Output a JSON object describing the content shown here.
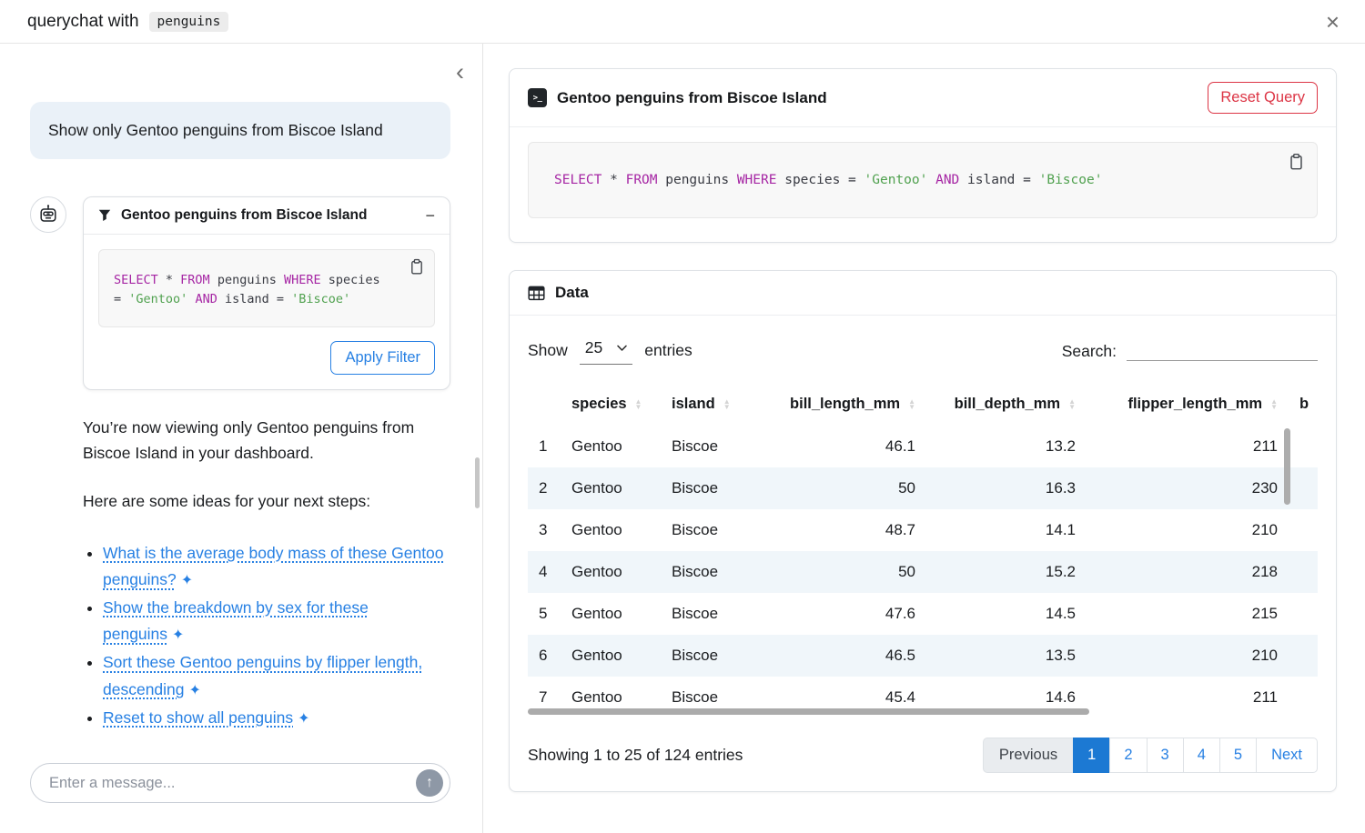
{
  "header": {
    "title_prefix": "querychat with",
    "dataset_chip": "penguins",
    "close_glyph": "×"
  },
  "sidebar": {
    "collapse_glyph": "‹",
    "user_message": "Show only Gentoo penguins from Biscoe Island",
    "filter_card": {
      "title": "Gentoo penguins from Biscoe Island",
      "collapse_glyph": "−",
      "apply_button": "Apply Filter",
      "sql_lines": [
        [
          {
            "t": "SELECT",
            "c": "kw"
          },
          {
            "t": " * ",
            "c": "pl"
          },
          {
            "t": "FROM",
            "c": "kw"
          },
          {
            "t": " penguins ",
            "c": "pl"
          },
          {
            "t": "WHERE",
            "c": "kw"
          },
          {
            "t": " species",
            "c": "pl"
          }
        ],
        [
          {
            "t": "= ",
            "c": "pl"
          },
          {
            "t": "'Gentoo'",
            "c": "str"
          },
          {
            "t": " ",
            "c": "pl"
          },
          {
            "t": "AND",
            "c": "kw"
          },
          {
            "t": " island = ",
            "c": "pl"
          },
          {
            "t": "'Biscoe'",
            "c": "str"
          }
        ]
      ]
    },
    "response_paragraphs": [
      "You’re now viewing only Gentoo penguins from Biscoe Island in your dashboard.",
      "Here are some ideas for your next steps:"
    ],
    "suggestion_glyph": "✦",
    "suggestions": [
      "What is the average body mass of these Gentoo penguins?",
      "Show the breakdown by sex for these penguins",
      "Sort these Gentoo penguins by flipper length, descending",
      "Reset to show all penguins"
    ],
    "input_placeholder": "Enter a message...",
    "send_glyph": "↑"
  },
  "query_card": {
    "terminal_glyph": ">_",
    "title": "Gentoo penguins from Biscoe Island",
    "reset_button": "Reset Query",
    "sql_tokens": [
      {
        "t": "SELECT",
        "c": "kw"
      },
      {
        "t": " * ",
        "c": "pl"
      },
      {
        "t": "FROM",
        "c": "kw"
      },
      {
        "t": " penguins ",
        "c": "pl"
      },
      {
        "t": "WHERE",
        "c": "kw"
      },
      {
        "t": " species = ",
        "c": "pl"
      },
      {
        "t": "'Gentoo'",
        "c": "str"
      },
      {
        "t": " ",
        "c": "pl"
      },
      {
        "t": "AND",
        "c": "kw"
      },
      {
        "t": " island = ",
        "c": "pl"
      },
      {
        "t": "'Biscoe'",
        "c": "str"
      }
    ]
  },
  "data_card": {
    "title": "Data",
    "show_label": "Show",
    "page_size": "25",
    "entries_label": "entries",
    "search_label": "Search:",
    "columns": [
      {
        "label": "",
        "sortable": false,
        "align": "left"
      },
      {
        "label": "species",
        "sortable": true,
        "align": "left"
      },
      {
        "label": "island",
        "sortable": true,
        "align": "left"
      },
      {
        "label": "bill_length_mm",
        "sortable": true,
        "align": "right"
      },
      {
        "label": "bill_depth_mm",
        "sortable": true,
        "align": "right"
      },
      {
        "label": "flipper_length_mm",
        "sortable": true,
        "align": "right"
      },
      {
        "label": "b",
        "sortable": false,
        "align": "left"
      }
    ],
    "rows": [
      [
        "1",
        "Gentoo",
        "Biscoe",
        "46.1",
        "13.2",
        "211",
        ""
      ],
      [
        "2",
        "Gentoo",
        "Biscoe",
        "50",
        "16.3",
        "230",
        ""
      ],
      [
        "3",
        "Gentoo",
        "Biscoe",
        "48.7",
        "14.1",
        "210",
        ""
      ],
      [
        "4",
        "Gentoo",
        "Biscoe",
        "50",
        "15.2",
        "218",
        ""
      ],
      [
        "5",
        "Gentoo",
        "Biscoe",
        "47.6",
        "14.5",
        "215",
        ""
      ],
      [
        "6",
        "Gentoo",
        "Biscoe",
        "46.5",
        "13.5",
        "210",
        ""
      ],
      [
        "7",
        "Gentoo",
        "Biscoe",
        "45.4",
        "14.6",
        "211",
        ""
      ]
    ],
    "info": "Showing 1 to 25 of 124 entries",
    "pagination": {
      "previous": "Previous",
      "pages": [
        "1",
        "2",
        "3",
        "4",
        "5"
      ],
      "active_page": "1",
      "next": "Next"
    }
  },
  "colors": {
    "accent_blue": "#2780e3",
    "active_page_bg": "#1c79d3",
    "danger_red": "#dc3545",
    "sql_keyword": "#a626a4",
    "sql_string": "#50a14f",
    "row_stripe": "#f0f6fa",
    "user_bubble_bg": "#eaf1f8"
  }
}
